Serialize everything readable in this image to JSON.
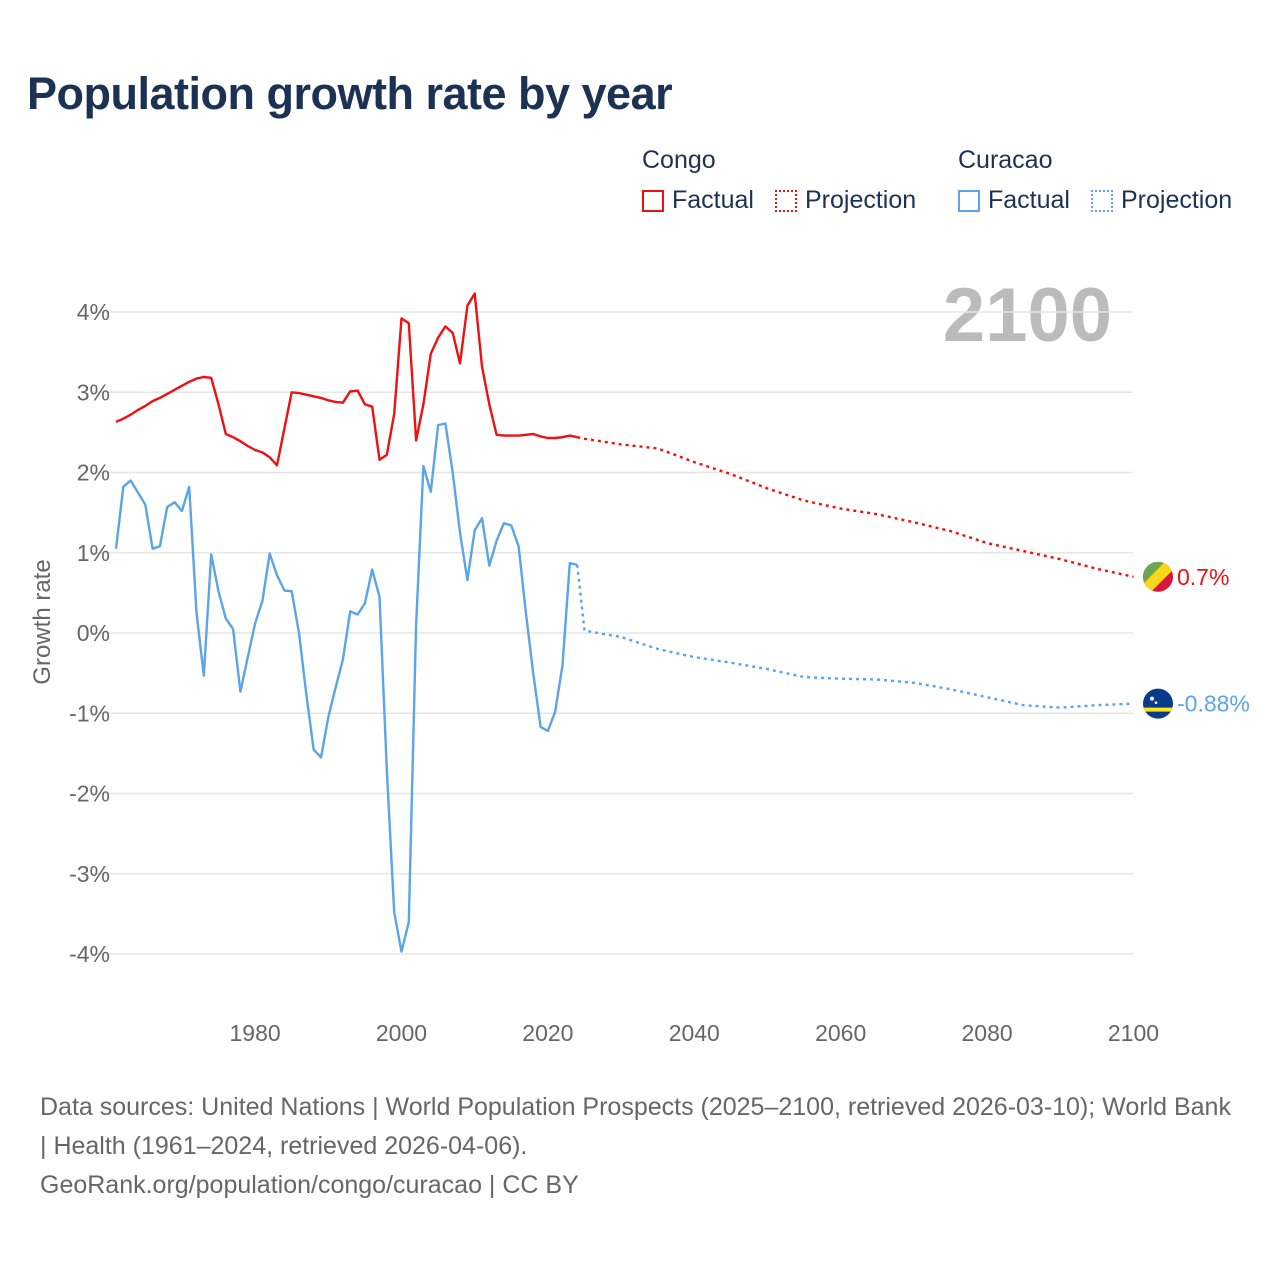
{
  "title": "Population growth rate by year",
  "legend": {
    "groups": [
      {
        "name": "Congo",
        "factual": "Factual",
        "projection": "Projection",
        "color": "#ee1111"
      },
      {
        "name": "Curacao",
        "factual": "Factual",
        "projection": "Projection",
        "color": "#5ba4e8"
      }
    ]
  },
  "current_year": "2100",
  "footer": {
    "sources": "Data sources: United Nations | World Population Prospects (2025–2100, retrieved 2026-03-10); World Bank | Health (1961–2024, retrieved 2026-04-06).",
    "credit": "GeoRank.org/population/congo/curacao | CC BY"
  },
  "chart_data": {
    "type": "line",
    "title": "Population growth rate by year",
    "xlabel": "",
    "ylabel": "Growth rate",
    "xlim": [
      1961,
      2100
    ],
    "ylim": [
      -4.6,
      4.5
    ],
    "x_ticks": [
      1980,
      2000,
      2020,
      2040,
      2060,
      2080,
      2100
    ],
    "y_ticks": [
      4,
      3,
      2,
      1,
      0,
      -1,
      -2,
      -3,
      -4
    ],
    "y_tick_labels": [
      "4%",
      "3%",
      "2%",
      "1%",
      "0%",
      "-1%",
      "-2%",
      "-3%",
      "-4%"
    ],
    "grid": true,
    "legend_position": "top-right",
    "series": [
      {
        "name": "Congo Factual",
        "color": "#ee1111",
        "style": "solid",
        "start": 1961,
        "values": [
          2.63,
          2.67,
          2.72,
          2.78,
          2.83,
          2.89,
          2.93,
          2.98,
          3.03,
          3.08,
          3.13,
          3.17,
          3.19,
          3.18,
          2.85,
          2.48,
          2.44,
          2.39,
          2.33,
          2.28,
          2.25,
          2.19,
          2.09,
          2.55,
          3.0,
          2.99,
          2.97,
          2.95,
          2.93,
          2.9,
          2.88,
          2.87,
          3.01,
          3.02,
          2.85,
          2.82,
          2.16,
          2.22,
          2.73,
          3.92,
          3.86,
          2.4,
          2.85,
          3.48,
          3.68,
          3.82,
          3.74,
          3.36,
          4.08,
          4.23,
          3.32,
          2.85,
          2.47,
          2.46,
          2.46,
          2.46,
          2.47,
          2.48,
          2.45,
          2.43,
          2.43,
          2.44,
          2.46,
          2.44
        ]
      },
      {
        "name": "Congo Projection",
        "color": "#ee1111",
        "style": "dotted",
        "x": [
          2024,
          2025,
          2030,
          2035,
          2040,
          2045,
          2050,
          2055,
          2060,
          2065,
          2070,
          2075,
          2080,
          2085,
          2090,
          2095,
          2100
        ],
        "values": [
          2.44,
          2.42,
          2.35,
          2.3,
          2.13,
          1.98,
          1.8,
          1.65,
          1.55,
          1.48,
          1.38,
          1.27,
          1.12,
          1.02,
          0.92,
          0.8,
          0.7
        ]
      },
      {
        "name": "Curacao Factual",
        "color": "#5ba4e8",
        "style": "solid",
        "start": 1961,
        "values": [
          1.05,
          1.82,
          1.9,
          1.75,
          1.6,
          1.05,
          1.08,
          1.57,
          1.63,
          1.52,
          1.82,
          0.25,
          -0.53,
          0.98,
          0.52,
          0.18,
          0.05,
          -0.73,
          -0.3,
          0.12,
          0.4,
          0.99,
          0.72,
          0.53,
          0.52,
          0.0,
          -0.76,
          -1.45,
          -1.55,
          -1.05,
          -0.68,
          -0.33,
          0.27,
          0.23,
          0.37,
          0.79,
          0.45,
          -1.7,
          -3.48,
          -3.97,
          -3.6,
          0.1,
          2.08,
          1.76,
          2.59,
          2.61,
          2.0,
          1.25,
          0.66,
          1.28,
          1.43,
          0.84,
          1.15,
          1.37,
          1.34,
          1.08,
          0.25,
          -0.5,
          -1.17,
          -1.22,
          -0.98,
          -0.4,
          0.87,
          0.85
        ]
      },
      {
        "name": "Curacao Projection",
        "color": "#5ba4e8",
        "style": "dotted",
        "x": [
          2024,
          2025,
          2030,
          2035,
          2040,
          2045,
          2050,
          2055,
          2060,
          2065,
          2070,
          2075,
          2080,
          2085,
          2090,
          2095,
          2100
        ],
        "values": [
          0.85,
          0.03,
          -0.05,
          -0.2,
          -0.3,
          -0.37,
          -0.45,
          -0.55,
          -0.57,
          -0.58,
          -0.62,
          -0.7,
          -0.8,
          -0.9,
          -0.93,
          -0.9,
          -0.88
        ]
      }
    ],
    "end_labels": [
      {
        "country": "Congo",
        "label": "0.7%",
        "value": 0.7,
        "color": "#ee1111"
      },
      {
        "country": "Curacao",
        "label": "-0.88%",
        "value": -0.88,
        "color": "#5ba4e8"
      }
    ]
  }
}
